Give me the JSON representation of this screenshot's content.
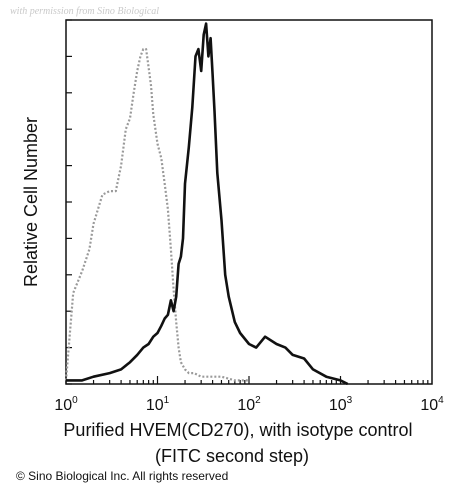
{
  "watermark": "with permission from Sino Biological",
  "copyright": "© Sino Biological Inc. All rights reserved",
  "colors": {
    "isotype": "#9a9a9a",
    "sample": "#111111",
    "axis": "#111111"
  },
  "chart_data": {
    "type": "area",
    "xlabel": "Purified HVEM(CD270), with isotype control",
    "xlabel_line2": "(FITC second step)",
    "ylabel": "Relative Cell Number",
    "x_scale": "log",
    "xlim": [
      1,
      10000
    ],
    "ylim": [
      0,
      100
    ],
    "grid": false,
    "x_ticks": [
      {
        "value": 1,
        "base": "10",
        "exp": "0"
      },
      {
        "value": 10,
        "base": "10",
        "exp": "1"
      },
      {
        "value": 100,
        "base": "10",
        "exp": "2"
      },
      {
        "value": 1000,
        "base": "10",
        "exp": "3"
      },
      {
        "value": 10000,
        "base": "10",
        "exp": "4"
      }
    ],
    "series": [
      {
        "style": "dotted",
        "x": [
          1.0,
          1.2,
          1.5,
          1.8,
          2.0,
          2.5,
          3.0,
          3.5,
          4.0,
          4.5,
          5.0,
          5.5,
          6.0,
          6.5,
          7.0,
          7.5,
          8.0,
          8.5,
          9.0,
          10.0,
          11.0,
          12.0,
          13.0,
          14.0,
          15.0,
          16.0,
          17.0,
          18.0,
          20.0,
          22.0,
          25.0,
          30.0,
          40.0,
          50.0,
          70.0,
          100.0
        ],
        "y": [
          1,
          25,
          31,
          37,
          44,
          52,
          53,
          53,
          60,
          70,
          73,
          80,
          86,
          90,
          92,
          92,
          87,
          82,
          74,
          66,
          62,
          55,
          48,
          37,
          26,
          17,
          10,
          6,
          4,
          3,
          3,
          2,
          2,
          2,
          1,
          1
        ]
      },
      {
        "style": "solid",
        "x": [
          1.0,
          1.5,
          2.0,
          3.0,
          4.0,
          5.0,
          6.0,
          7.0,
          8.0,
          9.0,
          10.0,
          11.0,
          12.0,
          13.0,
          14.0,
          15.0,
          16.0,
          17.0,
          18.0,
          19.0,
          20.0,
          22.0,
          24.0,
          26.0,
          28.0,
          30.0,
          32.0,
          34.0,
          36.0,
          38.0,
          40.0,
          42.0,
          45.0,
          50.0,
          55.0,
          60.0,
          70.0,
          80.0,
          100.0,
          120.0,
          150.0,
          200.0,
          250.0,
          300.0,
          400.0,
          500.0,
          700.0,
          1000.0,
          1200.0
        ],
        "y": [
          1,
          1,
          2,
          3,
          4,
          6,
          8,
          10,
          11,
          13,
          14,
          16,
          18,
          19,
          23,
          20,
          24,
          33,
          35,
          40,
          55,
          65,
          76,
          90,
          92,
          86,
          96,
          99,
          90,
          95,
          85,
          75,
          58,
          45,
          30,
          24,
          17,
          14,
          11,
          10,
          13,
          11,
          10,
          8,
          7,
          4,
          2,
          1,
          0
        ]
      }
    ]
  }
}
